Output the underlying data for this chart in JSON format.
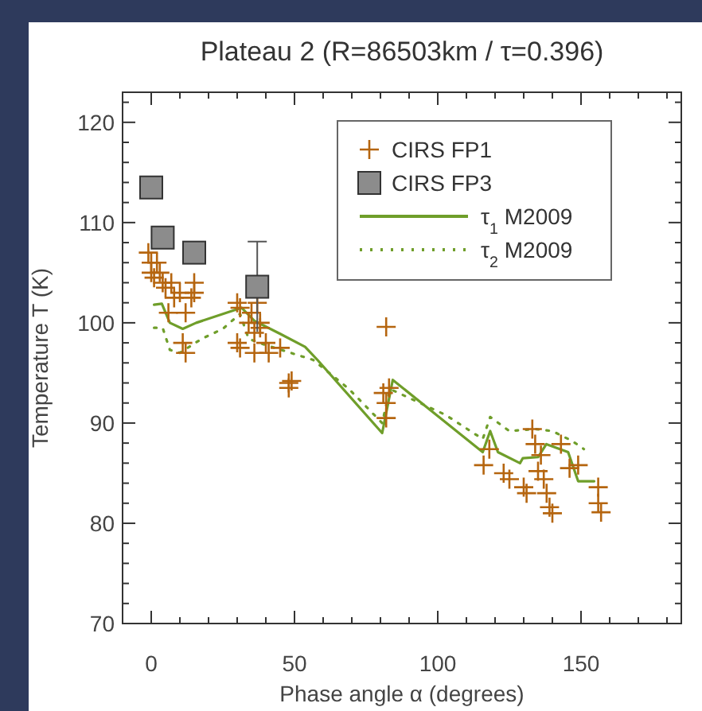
{
  "chart_data": {
    "type": "scatter",
    "title": "Plateau 2 (R=86503km / τ=0.396)",
    "xlabel": "Phase angle α (degrees)",
    "ylabel": "Temperature T (K)",
    "xlim": [
      -10,
      185
    ],
    "ylim": [
      70,
      123
    ],
    "xticks": [
      0,
      {
        "value": 10,
        "label": null
      },
      {
        "value": 20,
        "label": null
      },
      {
        "value": 30,
        "label": null
      },
      {
        "value": 40,
        "label": null
      },
      50,
      {
        "value": 60,
        "label": null
      },
      {
        "value": 70,
        "label": null
      },
      {
        "value": 80,
        "label": null
      },
      {
        "value": 90,
        "label": null
      },
      100,
      {
        "value": 110,
        "label": null
      },
      {
        "value": 120,
        "label": null
      },
      {
        "value": 130,
        "label": null
      },
      {
        "value": 140,
        "label": null
      },
      150,
      {
        "value": 160,
        "label": null
      },
      {
        "value": 170,
        "label": null
      },
      {
        "value": 180,
        "label": null
      }
    ],
    "yticks": [
      70,
      {
        "value": 72,
        "label": null
      },
      {
        "value": 74,
        "label": null
      },
      {
        "value": 76,
        "label": null
      },
      {
        "value": 78,
        "label": null
      },
      80,
      {
        "value": 82,
        "label": null
      },
      {
        "value": 84,
        "label": null
      },
      {
        "value": 86,
        "label": null
      },
      {
        "value": 88,
        "label": null
      },
      90,
      {
        "value": 92,
        "label": null
      },
      {
        "value": 94,
        "label": null
      },
      {
        "value": 96,
        "label": null
      },
      {
        "value": 98,
        "label": null
      },
      100,
      {
        "value": 102,
        "label": null
      },
      {
        "value": 104,
        "label": null
      },
      {
        "value": 106,
        "label": null
      },
      {
        "value": 108,
        "label": null
      },
      110,
      {
        "value": 112,
        "label": null
      },
      {
        "value": 114,
        "label": null
      },
      {
        "value": 116,
        "label": null
      },
      {
        "value": 118,
        "label": null
      },
      120,
      {
        "value": 122,
        "label": null
      }
    ],
    "grid": false,
    "legend": "top right",
    "series": [
      {
        "name": "CIRS FP1",
        "marker": "cross",
        "color": "#b5650f",
        "x": [
          -1,
          0,
          0,
          1,
          2,
          3,
          4,
          5,
          7,
          8,
          6,
          10,
          12,
          15,
          15,
          14,
          11,
          12,
          30,
          31,
          30,
          31,
          34,
          35,
          36,
          37,
          38,
          40,
          41,
          45,
          48,
          48,
          38,
          36,
          49,
          82,
          81,
          82,
          83,
          82,
          116,
          118,
          123,
          125,
          130,
          131,
          134,
          136,
          135,
          137,
          138,
          139,
          140,
          143,
          146,
          149,
          156,
          156,
          157,
          133
        ],
        "values": [
          107,
          106,
          105,
          104.5,
          106,
          105,
          104,
          103.5,
          104,
          102.5,
          101,
          103,
          101,
          104,
          103,
          102.5,
          98,
          97,
          102,
          101.5,
          98,
          97.5,
          100,
          101,
          99,
          102,
          100,
          98,
          97,
          97.5,
          94,
          93.5,
          99.5,
          97,
          94.2,
          99.6,
          93,
          92,
          93.5,
          90.5,
          85.8,
          87.4,
          85,
          84.4,
          83.6,
          83,
          87.9,
          86.8,
          85.2,
          84.4,
          83,
          81.6,
          81,
          87.9,
          85.5,
          85.8,
          83.6,
          82,
          81.1,
          89.4
        ]
      },
      {
        "name": "CIRS FP3",
        "marker": "square",
        "color": "#8c8c8c",
        "x": [
          0,
          4,
          15,
          37
        ],
        "values": [
          113.5,
          108.5,
          107,
          103.6
        ],
        "errors": [
          null,
          null,
          null,
          4.5
        ]
      },
      {
        "name": "τ$_{1}$ M2009",
        "type": "line",
        "line_style": "solid",
        "color": "#6f9e2a",
        "x": [
          1,
          3.7,
          6.5,
          11,
          15.7,
          31.5,
          36,
          45,
          53.7,
          58,
          80.6,
          84.3,
          115.7,
          118.3,
          121,
          128.7,
          129.7,
          135,
          137.9,
          145.5,
          149,
          154.6
        ],
        "values": [
          101.8,
          101.9,
          100,
          99.4,
          100,
          101.5,
          100.2,
          98.9,
          97.6,
          96.3,
          89,
          94.3,
          87.1,
          89.2,
          87.1,
          86,
          86.5,
          86.6,
          87.9,
          87.1,
          84.2,
          84.2
        ]
      },
      {
        "name": "τ$_{2}$ M2009",
        "type": "line",
        "line_style": "dotted",
        "color": "#6f9e2a",
        "x": [
          1,
          4,
          6.5,
          10,
          17.6,
          25,
          31,
          34,
          39.8,
          56.5,
          69,
          80.6,
          83.3,
          102.8,
          115.7,
          118.3,
          125,
          134,
          140,
          147,
          151
        ],
        "values": [
          99.5,
          99.5,
          97.3,
          97,
          98.4,
          99.4,
          100.9,
          98.4,
          97.8,
          96.3,
          93.4,
          90,
          93.4,
          90.8,
          88.4,
          90.6,
          89.2,
          89.4,
          89.2,
          88.2,
          87.4
        ]
      }
    ]
  }
}
